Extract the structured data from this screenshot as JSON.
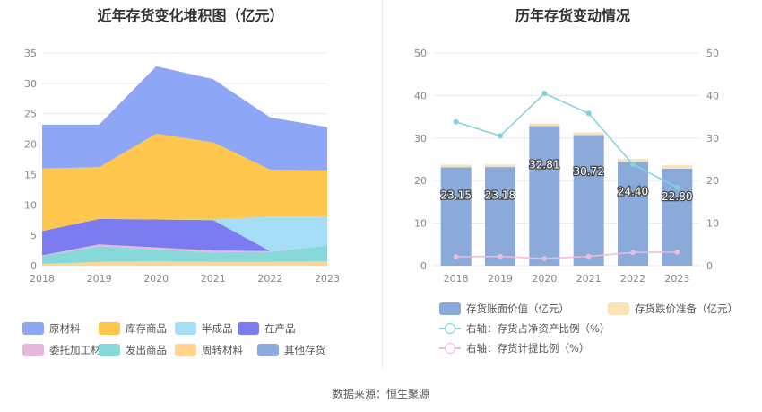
{
  "source_text": "数据来源：恒生聚源",
  "chart_data": [
    {
      "type": "area",
      "title": "近年存货变化堆积图（亿元）",
      "xlabel": "",
      "ylabel": "",
      "x": [
        "2018",
        "2019",
        "2020",
        "2021",
        "2022",
        "2023"
      ],
      "ylim": [
        0,
        35
      ],
      "yticks": [
        0,
        5,
        10,
        15,
        20,
        25,
        30,
        35
      ],
      "stacked": true,
      "grid": true,
      "legend_position": "bottom",
      "series": [
        {
          "name": "其他存货",
          "color": "#8faadc",
          "values": [
            0.0,
            0.0,
            0.0,
            0.0,
            0.0,
            0.0
          ]
        },
        {
          "name": "周转材料",
          "color": "#ffd591",
          "values": [
            0.3,
            0.6,
            0.7,
            0.6,
            0.6,
            0.7
          ]
        },
        {
          "name": "发出商品",
          "color": "#87d9d9",
          "values": [
            1.3,
            2.6,
            2.0,
            1.6,
            1.7,
            2.6
          ]
        },
        {
          "name": "委托加工材料",
          "color": "#e6b8e0",
          "values": [
            0.1,
            0.3,
            0.3,
            0.3,
            0.1,
            0.0
          ]
        },
        {
          "name": "在产品",
          "color": "#7c7cf0",
          "values": [
            4.0,
            4.2,
            4.6,
            5.0,
            0.0,
            0.0
          ]
        },
        {
          "name": "半成品",
          "color": "#a6def7",
          "values": [
            0.0,
            0.0,
            0.0,
            0.1,
            5.7,
            4.8
          ]
        },
        {
          "name": "库存商品",
          "color": "#ffc74d",
          "values": [
            10.3,
            8.5,
            14.1,
            12.7,
            7.7,
            7.6
          ]
        },
        {
          "name": "原材料",
          "color": "#8da6f5",
          "values": [
            7.2,
            7.0,
            11.1,
            10.4,
            8.6,
            7.1
          ]
        }
      ],
      "legend_order": [
        "原材料",
        "库存商品",
        "半成品",
        "在产品",
        "委托加工材料",
        "发出商品",
        "周转材料",
        "其他存货"
      ]
    },
    {
      "type": "bar",
      "title": "历年存货变动情况",
      "xlabel": "",
      "ylabel": "",
      "categories": [
        "2018",
        "2019",
        "2020",
        "2021",
        "2022",
        "2023"
      ],
      "ylim": [
        0,
        50
      ],
      "yticks": [
        0,
        10,
        20,
        30,
        40,
        50
      ],
      "y2lim": [
        0,
        50
      ],
      "y2ticks": [
        0,
        10,
        20,
        30,
        40,
        50
      ],
      "grid": true,
      "legend_position": "bottom",
      "bars": [
        {
          "name": "存货账面价值（亿元）",
          "color": "#8aaad9",
          "values": [
            23.15,
            23.18,
            32.81,
            30.72,
            24.4,
            22.8
          ],
          "labels": [
            "23.15",
            "23.18",
            "32.81",
            "30.72",
            "24.40",
            "22.80"
          ]
        },
        {
          "name": "存货跌价准备（亿元）",
          "color": "#fde2b8",
          "values": [
            0.6,
            0.6,
            0.6,
            0.6,
            0.7,
            0.8
          ]
        }
      ],
      "lines": [
        {
          "name": "右轴：存货占净资产比例（%）",
          "color": "#7fd3db",
          "axis": "right",
          "values": [
            33.8,
            30.5,
            40.5,
            35.8,
            23.8,
            18.4
          ]
        },
        {
          "name": "右轴：存货计提比例（%）",
          "color": "#efb9dc",
          "axis": "right",
          "values": [
            2.1,
            2.2,
            1.7,
            2.2,
            3.1,
            3.2
          ]
        }
      ]
    }
  ]
}
